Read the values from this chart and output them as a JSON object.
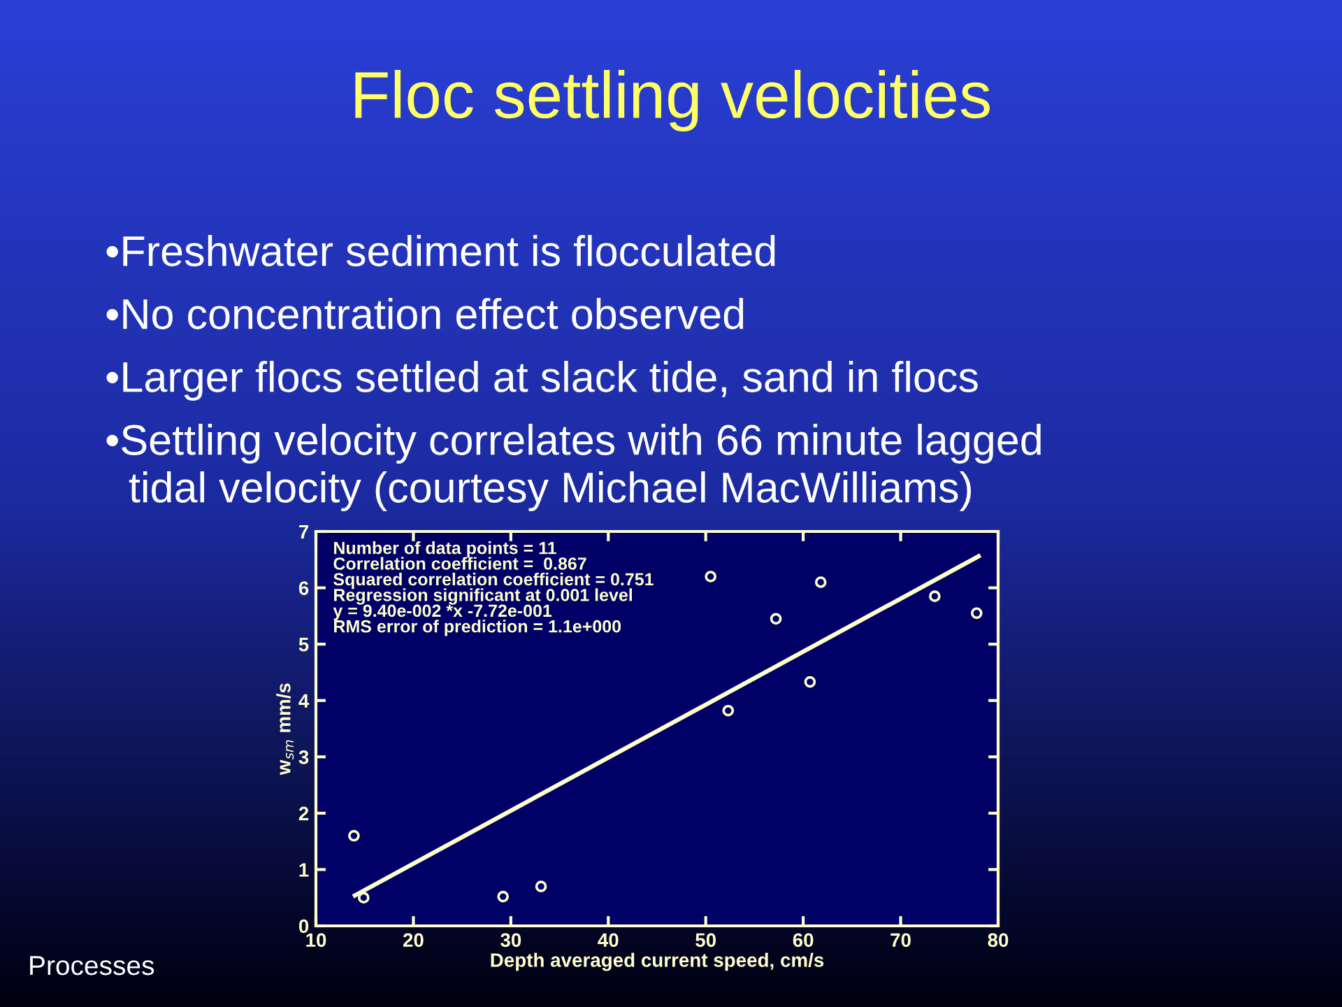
{
  "chart_data": {
    "type": "scatter",
    "title": "Floc settling velocities",
    "xlabel": "Depth averaged current speed, cm/s",
    "ylabel": "w$_{sm}$ mm/s",
    "series": [
      {
        "color": "#ffffcc",
        "marker": "circle",
        "x": [
          13.9,
          14.9,
          29.2,
          33.1,
          50.5,
          52.3,
          57.2,
          60.7,
          61.8,
          73.5,
          77.8
        ],
        "values": [
          1.6,
          0.5,
          0.52,
          0.7,
          6.2,
          3.82,
          5.45,
          4.33,
          6.1,
          5.85,
          5.55
        ]
      },
      {
        "type": "line",
        "color": "#ffffcc",
        "x": [
          14,
          78
        ],
        "values": [
          0.54,
          6.56
        ]
      }
    ],
    "xlim": [
      10,
      80
    ],
    "xticks": [
      10,
      20,
      30,
      40,
      50,
      60,
      70,
      80
    ],
    "ylim": [
      0,
      7
    ],
    "yticks": [
      0,
      1,
      2,
      3,
      4,
      5,
      6,
      7
    ],
    "grid": false,
    "annotations": [
      "•Freshwater sediment is flocculated",
      "•No concentration effect observed",
      "•Larger flocs settled at slack tide, sand in flocs",
      "•Settling velocity correlates with 66 minute lagged\n  tidal velocity (courtesy Michael MacWilliams)",
      "Number of data points = 11\nCorrelation coefficient =  0.867\nSquared correlation coefficient = 0.751\nRegression significant at 0.001 level\ny = 9.40e-002 *x -7.72e-001\nRMS error of prediction = 1.1e+000",
      "Processes"
    ]
  }
}
